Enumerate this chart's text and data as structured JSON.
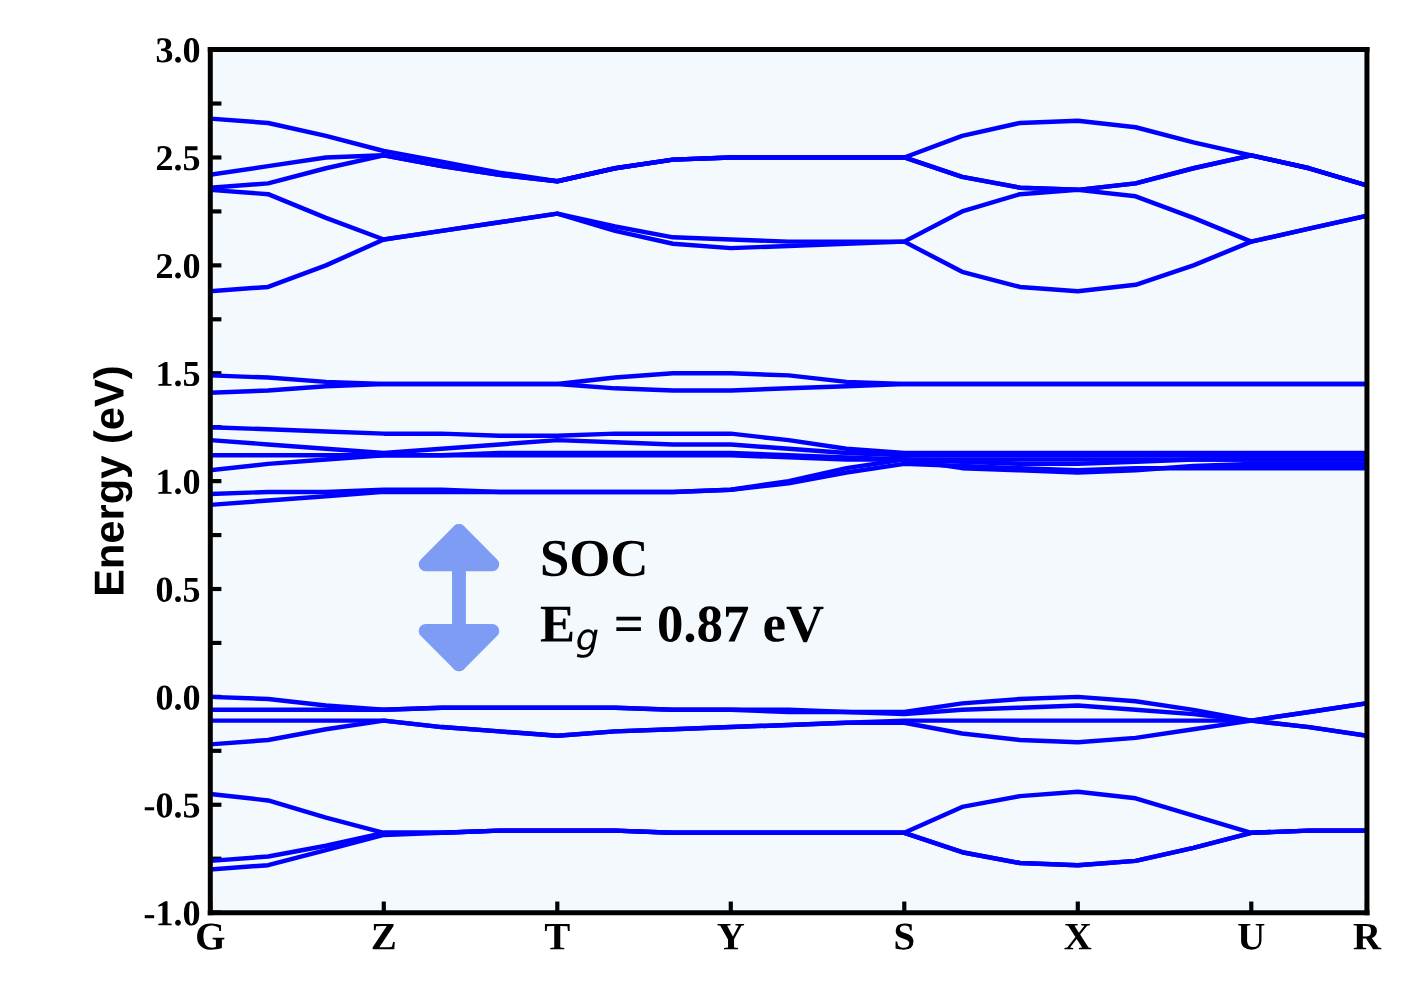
{
  "chart_data": {
    "type": "line",
    "ylabel": "Energy (eV)",
    "annotations": [
      "SOC",
      "E$_{g}$ = 0.87 eV"
    ],
    "categories": [
      "G",
      null,
      null,
      "Z",
      null,
      null,
      "T",
      null,
      null,
      "Y",
      null,
      null,
      "S",
      null,
      null,
      "X",
      null,
      null,
      "U",
      null,
      "R"
    ],
    "ylim": [
      -1.0,
      3.0
    ],
    "yticks": [
      {
        "value": -1.0,
        "label": "-1.0"
      },
      {
        "value": -0.75,
        "label": null
      },
      {
        "value": -0.5,
        "label": "-0.5"
      },
      {
        "value": -0.25,
        "label": null
      },
      {
        "value": 0.0,
        "label": "0.0"
      },
      {
        "value": 0.25,
        "label": null
      },
      {
        "value": 0.5,
        "label": "0.5"
      },
      {
        "value": 0.75,
        "label": null
      },
      {
        "value": 1.0,
        "label": "1.0"
      },
      {
        "value": 1.25,
        "label": null
      },
      {
        "value": 1.5,
        "label": "1.5"
      },
      {
        "value": 1.75,
        "label": null
      },
      {
        "value": 2.0,
        "label": "2.0"
      },
      {
        "value": 2.25,
        "label": null
      },
      {
        "value": 2.5,
        "label": "2.5"
      },
      {
        "value": 2.75,
        "label": null
      },
      {
        "value": 3.0,
        "label": "3.0"
      }
    ],
    "grid": false,
    "legend": false,
    "marker": "none",
    "line_style": "solid",
    "series": [
      {
        "color": "#0000ff",
        "values": [
          2.68,
          2.66,
          2.6,
          2.53,
          2.48,
          2.43,
          2.39,
          2.45,
          2.49,
          2.5,
          2.5,
          2.5,
          2.5,
          2.6,
          2.66,
          2.67,
          2.64,
          2.57,
          2.51,
          2.45,
          2.37
        ]
      },
      {
        "color": "#0000ff",
        "values": [
          2.42,
          2.46,
          2.5,
          2.51,
          2.46,
          2.42,
          2.39,
          2.45,
          2.49,
          2.5,
          2.5,
          2.5,
          2.5,
          2.41,
          2.36,
          2.35,
          2.38,
          2.45,
          2.51,
          2.45,
          2.37
        ]
      },
      {
        "color": "#0000ff",
        "values": [
          2.36,
          2.38,
          2.45,
          2.51,
          2.46,
          2.42,
          2.39,
          2.45,
          2.49,
          2.5,
          2.5,
          2.5,
          2.5,
          2.41,
          2.36,
          2.35,
          2.38,
          2.45,
          2.51,
          2.45,
          2.37
        ]
      },
      {
        "color": "#0000ff",
        "values": [
          2.35,
          2.33,
          2.22,
          2.12,
          2.16,
          2.2,
          2.24,
          2.18,
          2.13,
          2.12,
          2.11,
          2.11,
          2.11,
          2.25,
          2.33,
          2.35,
          2.32,
          2.22,
          2.11,
          2.17,
          2.23
        ]
      },
      {
        "color": "#0000ff",
        "values": [
          1.88,
          1.9,
          2.0,
          2.12,
          2.16,
          2.2,
          2.24,
          2.16,
          2.1,
          2.08,
          2.09,
          2.1,
          2.11,
          1.97,
          1.9,
          1.88,
          1.91,
          2.0,
          2.11,
          2.17,
          2.23
        ]
      },
      {
        "color": "#0000ff",
        "values": [
          1.49,
          1.48,
          1.46,
          1.45,
          1.45,
          1.45,
          1.45,
          1.48,
          1.5,
          1.5,
          1.49,
          1.46,
          1.45,
          1.45,
          1.45,
          1.45,
          1.45,
          1.45,
          1.45,
          1.45,
          1.45
        ]
      },
      {
        "color": "#0000ff",
        "values": [
          1.41,
          1.42,
          1.44,
          1.45,
          1.45,
          1.45,
          1.45,
          1.43,
          1.42,
          1.42,
          1.43,
          1.44,
          1.45,
          1.45,
          1.45,
          1.45,
          1.45,
          1.45,
          1.45,
          1.45,
          1.45
        ]
      },
      {
        "color": "#0000ff",
        "values": [
          1.25,
          1.24,
          1.23,
          1.22,
          1.22,
          1.21,
          1.21,
          1.22,
          1.22,
          1.22,
          1.19,
          1.15,
          1.13,
          1.13,
          1.13,
          1.13,
          1.13,
          1.13,
          1.13,
          1.13,
          1.13
        ]
      },
      {
        "color": "#0000ff",
        "values": [
          1.19,
          1.17,
          1.15,
          1.13,
          1.15,
          1.17,
          1.19,
          1.18,
          1.17,
          1.17,
          1.15,
          1.13,
          1.12,
          1.12,
          1.12,
          1.12,
          1.12,
          1.12,
          1.12,
          1.12,
          1.12
        ]
      },
      {
        "color": "#0000ff",
        "values": [
          1.12,
          1.12,
          1.12,
          1.12,
          1.12,
          1.13,
          1.13,
          1.13,
          1.13,
          1.13,
          1.12,
          1.11,
          1.1,
          1.09,
          1.08,
          1.08,
          1.09,
          1.1,
          1.1,
          1.1,
          1.1
        ]
      },
      {
        "color": "#0000ff",
        "values": [
          1.05,
          1.08,
          1.1,
          1.12,
          1.12,
          1.12,
          1.12,
          1.12,
          1.12,
          1.12,
          1.11,
          1.1,
          1.1,
          1.06,
          1.05,
          1.04,
          1.05,
          1.07,
          1.08,
          1.08,
          1.08
        ]
      },
      {
        "color": "#0000ff",
        "values": [
          0.94,
          0.95,
          0.95,
          0.96,
          0.96,
          0.95,
          0.95,
          0.95,
          0.95,
          0.96,
          1.0,
          1.06,
          1.1,
          1.1,
          1.1,
          1.1,
          1.1,
          1.1,
          1.1,
          1.1,
          1.1
        ]
      },
      {
        "color": "#0000ff",
        "values": [
          0.89,
          0.91,
          0.93,
          0.95,
          0.95,
          0.95,
          0.95,
          0.95,
          0.95,
          0.96,
          0.99,
          1.04,
          1.08,
          1.07,
          1.06,
          1.05,
          1.06,
          1.06,
          1.06,
          1.06,
          1.06
        ]
      },
      {
        "color": "#0000ff",
        "values": [
          0.0,
          -0.01,
          -0.04,
          -0.06,
          -0.05,
          -0.05,
          -0.05,
          -0.05,
          -0.06,
          -0.06,
          -0.06,
          -0.07,
          -0.07,
          -0.03,
          -0.01,
          0.0,
          -0.02,
          -0.06,
          -0.11,
          -0.07,
          -0.03
        ]
      },
      {
        "color": "#0000ff",
        "values": [
          -0.06,
          -0.06,
          -0.06,
          -0.06,
          -0.05,
          -0.05,
          -0.05,
          -0.05,
          -0.06,
          -0.06,
          -0.07,
          -0.07,
          -0.08,
          -0.06,
          -0.05,
          -0.04,
          -0.06,
          -0.08,
          -0.11,
          -0.07,
          -0.03
        ]
      },
      {
        "color": "#0000ff",
        "values": [
          -0.11,
          -0.11,
          -0.11,
          -0.11,
          -0.14,
          -0.16,
          -0.18,
          -0.16,
          -0.15,
          -0.14,
          -0.13,
          -0.12,
          -0.11,
          -0.11,
          -0.11,
          -0.11,
          -0.11,
          -0.11,
          -0.11,
          -0.14,
          -0.18
        ]
      },
      {
        "color": "#0000ff",
        "values": [
          -0.22,
          -0.2,
          -0.15,
          -0.11,
          -0.14,
          -0.16,
          -0.18,
          -0.16,
          -0.15,
          -0.14,
          -0.13,
          -0.12,
          -0.12,
          -0.17,
          -0.2,
          -0.21,
          -0.19,
          -0.15,
          -0.11,
          -0.14,
          -0.18
        ]
      },
      {
        "color": "#0000ff",
        "values": [
          -0.45,
          -0.48,
          -0.56,
          -0.63,
          -0.63,
          -0.62,
          -0.62,
          -0.62,
          -0.63,
          -0.63,
          -0.63,
          -0.63,
          -0.63,
          -0.51,
          -0.46,
          -0.44,
          -0.47,
          -0.55,
          -0.63,
          -0.62,
          -0.62
        ]
      },
      {
        "color": "#0000ff",
        "values": [
          -0.76,
          -0.74,
          -0.69,
          -0.63,
          -0.63,
          -0.62,
          -0.62,
          -0.62,
          -0.63,
          -0.63,
          -0.63,
          -0.63,
          -0.63,
          -0.72,
          -0.77,
          -0.78,
          -0.76,
          -0.7,
          -0.63,
          -0.62,
          -0.62
        ]
      },
      {
        "color": "#0000ff",
        "values": [
          -0.8,
          -0.78,
          -0.71,
          -0.64,
          -0.63,
          -0.62,
          -0.62,
          -0.62,
          -0.63,
          -0.63,
          -0.63,
          -0.63,
          -0.63,
          -0.72,
          -0.77,
          -0.78,
          -0.76,
          -0.7,
          -0.63,
          -0.62,
          -0.62
        ]
      }
    ]
  }
}
